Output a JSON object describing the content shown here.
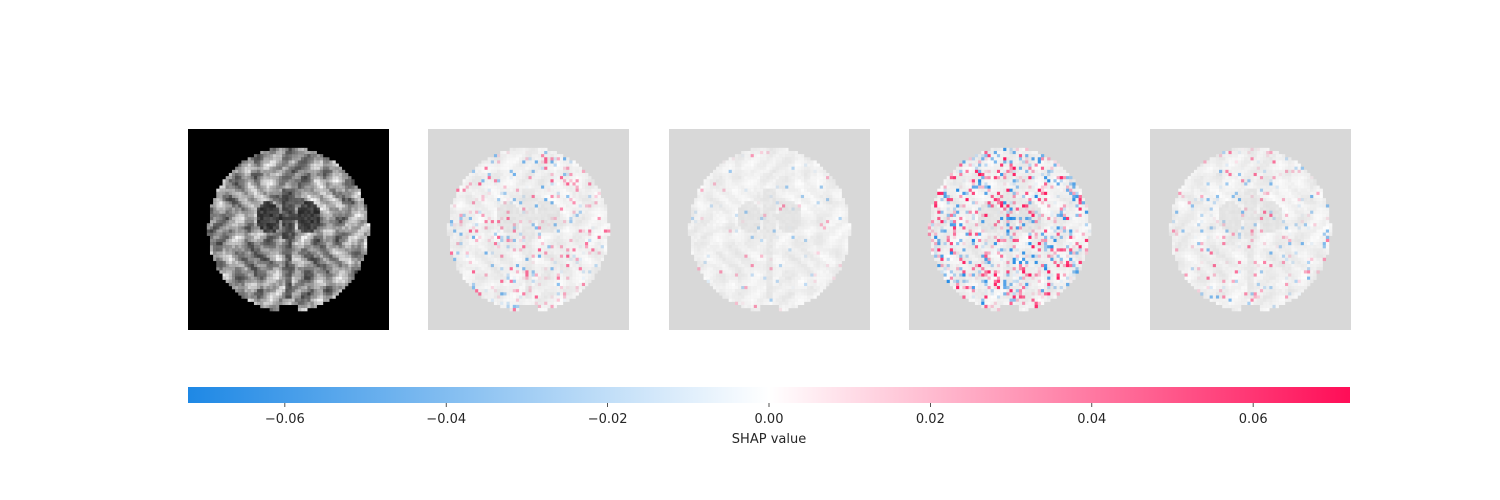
{
  "chart_data": {
    "type": "heatmap",
    "panels": [
      {
        "name": "input-image",
        "kind": "grayscale"
      },
      {
        "name": "shap-map-1",
        "kind": "shap",
        "intensity": 0.45
      },
      {
        "name": "shap-map-2",
        "kind": "shap",
        "intensity": 0.12
      },
      {
        "name": "shap-map-3",
        "kind": "shap",
        "intensity": 0.95
      },
      {
        "name": "shap-map-4",
        "kind": "shap",
        "intensity": 0.35
      }
    ],
    "colorbar": {
      "label": "SHAP value",
      "vmin": -0.072,
      "vmax": 0.072,
      "ticks": [
        -0.06,
        -0.04,
        -0.02,
        0.0,
        0.02,
        0.04,
        0.06
      ],
      "tick_labels": [
        "−0.06",
        "−0.04",
        "−0.02",
        "0.00",
        "0.02",
        "0.04",
        "0.06"
      ],
      "colors": {
        "negative": "#1e88e5",
        "zero": "#ffffff",
        "positive": "#ff0d57"
      }
    },
    "background_color": "#d8d8d8"
  }
}
